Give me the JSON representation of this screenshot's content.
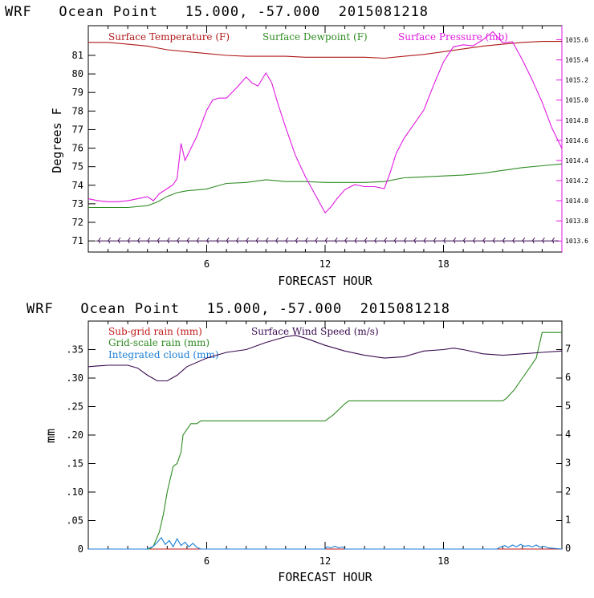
{
  "colors": {
    "temperature": "#b01818",
    "dewpoint": "#2e8b22",
    "pressure": "#e018e0",
    "subgrid": "#c01818",
    "gridscale": "#2e8b22",
    "cloud": "#1a7fd6",
    "wind": "#3a0a50",
    "barbs": "#3a0a50"
  },
  "chart_data": [
    {
      "type": "line",
      "title": "WRF   Ocean Point   15.000, -57.000  2015081218",
      "xlabel": "FORECAST HOUR",
      "ylabel": "Degrees F",
      "xlim": [
        0,
        24
      ],
      "ylim": [
        70.4,
        82.6
      ],
      "xticks": [
        6,
        12,
        18
      ],
      "yticks": [
        71,
        72,
        73,
        74,
        75,
        76,
        77,
        78,
        79,
        80,
        81
      ],
      "y2lim": [
        1013.49,
        1015.74
      ],
      "y2ticks": [
        "1013.6",
        "1013.8",
        "1014.0",
        "1014.2",
        "1014.4",
        "1014.6",
        "1014.8",
        "1015.0",
        "1015.2",
        "1015.4",
        "1015.6"
      ],
      "legend": [
        "Surface Temperature (F)",
        "Surface Dewpoint (F)",
        "Surface Pressure (mb)"
      ],
      "series": [
        {
          "name": "Surface Temperature (F)",
          "axis": "left",
          "x": [
            0,
            1,
            2,
            3,
            4,
            5,
            6,
            7,
            8,
            9,
            10,
            11,
            12,
            13,
            14,
            15,
            16,
            17,
            18,
            19,
            20,
            21,
            22,
            23,
            24
          ],
          "values": [
            81.7,
            81.7,
            81.6,
            81.5,
            81.3,
            81.2,
            81.1,
            81.0,
            80.95,
            80.95,
            80.95,
            80.9,
            80.9,
            80.9,
            80.9,
            80.85,
            80.95,
            81.05,
            81.2,
            81.35,
            81.5,
            81.6,
            81.7,
            81.75,
            81.75
          ]
        },
        {
          "name": "Surface Dewpoint (F)",
          "axis": "left",
          "x": [
            0,
            1,
            2,
            3,
            3.5,
            4,
            4.5,
            5,
            5.5,
            6,
            6.5,
            7,
            8,
            9,
            10,
            11,
            12,
            13,
            14,
            15,
            16,
            17,
            18,
            19,
            20,
            21,
            22,
            23,
            24
          ],
          "values": [
            72.8,
            72.8,
            72.8,
            72.9,
            73.1,
            73.4,
            73.6,
            73.7,
            73.75,
            73.8,
            73.95,
            74.1,
            74.15,
            74.3,
            74.2,
            74.2,
            74.15,
            74.15,
            74.15,
            74.2,
            74.4,
            74.45,
            74.5,
            74.55,
            74.65,
            74.8,
            74.95,
            75.05,
            75.15
          ]
        },
        {
          "name": "Surface Pressure (mb)",
          "axis": "right",
          "x": [
            0,
            0.5,
            1,
            1.5,
            2,
            2.5,
            3,
            3.3,
            3.6,
            4,
            4.3,
            4.5,
            4.7,
            4.9,
            5.2,
            5.5,
            6,
            6.3,
            6.6,
            7,
            7.5,
            8,
            8.3,
            8.6,
            9,
            9.3,
            9.6,
            10,
            10.5,
            11,
            11.5,
            12,
            12.3,
            12.6,
            13,
            13.5,
            14,
            14.5,
            15,
            15.3,
            15.6,
            16,
            16.5,
            17,
            17.5,
            18,
            18.5,
            19,
            19.5,
            20,
            20.5,
            21,
            21.5,
            22,
            22.5,
            23,
            23.5,
            24
          ],
          "values": [
            1014.02,
            1014.0,
            1013.99,
            1013.99,
            1014.0,
            1014.02,
            1014.04,
            1014.0,
            1014.07,
            1014.12,
            1014.16,
            1014.22,
            1014.57,
            1014.4,
            1014.52,
            1014.64,
            1014.9,
            1015.0,
            1015.02,
            1015.02,
            1015.12,
            1015.23,
            1015.17,
            1015.14,
            1015.27,
            1015.17,
            1014.97,
            1014.73,
            1014.45,
            1014.24,
            1014.06,
            1013.88,
            1013.94,
            1014.02,
            1014.11,
            1014.16,
            1014.14,
            1014.14,
            1014.12,
            1014.28,
            1014.47,
            1014.62,
            1014.76,
            1014.9,
            1015.15,
            1015.38,
            1015.53,
            1015.55,
            1015.54,
            1015.6,
            1015.68,
            1015.57,
            1015.58,
            1015.4,
            1015.2,
            1014.98,
            1014.72,
            1014.52
          ]
        }
      ],
      "annotations": [
        "Surface wind barbs along 71 F line"
      ]
    },
    {
      "type": "line",
      "title": "WRF   Ocean Point   15.000, -57.000  2015081218",
      "xlabel": "FORECAST HOUR",
      "ylabel": "mm",
      "xlim": [
        0,
        24
      ],
      "ylim": [
        0,
        0.4
      ],
      "xticks": [
        6,
        12,
        18
      ],
      "yticks": [
        0,
        0.05,
        0.1,
        0.15,
        0.2,
        0.25,
        0.3,
        0.35
      ],
      "yticklabels": [
        "0",
        ".05",
        ".10",
        ".15",
        ".20",
        ".25",
        ".30",
        ".35"
      ],
      "y2lim": [
        0,
        8
      ],
      "y2ticks": [
        "0",
        "1",
        "2",
        "3",
        "4",
        "5",
        "6",
        "7"
      ],
      "legend": [
        "Sub-grid rain (mm)",
        "Grid-scale rain (mm)",
        "Integrated cloud (mm)",
        "Surface Wind Speed (m/s)"
      ],
      "series": [
        {
          "name": "Sub-grid rain (mm)",
          "axis": "left",
          "x": [
            0,
            24
          ],
          "values": [
            0,
            0
          ]
        },
        {
          "name": "Grid-scale rain (mm)",
          "axis": "left",
          "x": [
            0,
            3.1,
            3.3,
            3.6,
            3.8,
            4.0,
            4.3,
            4.5,
            4.7,
            4.8,
            5.0,
            5.2,
            5.5,
            5.7,
            6,
            7,
            8,
            9,
            10,
            11,
            12,
            12.4,
            12.7,
            13,
            13.2,
            14,
            15,
            16,
            17,
            18,
            19,
            20,
            21,
            21.2,
            21.6,
            22,
            22.4,
            22.7,
            23,
            23.1,
            24
          ],
          "values": [
            0,
            0,
            0.005,
            0.03,
            0.06,
            0.1,
            0.145,
            0.15,
            0.17,
            0.2,
            0.21,
            0.22,
            0.22,
            0.225,
            0.225,
            0.225,
            0.225,
            0.225,
            0.225,
            0.225,
            0.225,
            0.235,
            0.245,
            0.255,
            0.26,
            0.26,
            0.26,
            0.26,
            0.26,
            0.26,
            0.26,
            0.26,
            0.26,
            0.265,
            0.28,
            0.3,
            0.32,
            0.335,
            0.38,
            0.38,
            0.38
          ]
        },
        {
          "name": "Integrated cloud (mm)",
          "axis": "left",
          "x": [
            0,
            3.0,
            3.3,
            3.5,
            3.7,
            3.9,
            4.1,
            4.3,
            4.5,
            4.7,
            4.9,
            5.1,
            5.3,
            5.5,
            5.7,
            6,
            12,
            12.1,
            12.3,
            12.5,
            12.7,
            12.9,
            13,
            20.7,
            20.9,
            21.1,
            21.3,
            21.5,
            21.7,
            21.9,
            22.1,
            22.3,
            22.5,
            22.7,
            22.9,
            23.1,
            23.3,
            24
          ],
          "values": [
            0,
            0,
            0.005,
            0.012,
            0.02,
            0.008,
            0.015,
            0.004,
            0.018,
            0.006,
            0.012,
            0.004,
            0.01,
            0.003,
            0.0,
            0,
            0,
            0.004,
            0.002,
            0.005,
            0.002,
            0.004,
            0,
            0,
            0.004,
            0.006,
            0.003,
            0.007,
            0.004,
            0.008,
            0.005,
            0.006,
            0.004,
            0.007,
            0.003,
            0.005,
            0.002,
            0
          ]
        },
        {
          "name": "Surface Wind Speed (m/s)",
          "axis": "right",
          "x": [
            0,
            1,
            2,
            2.5,
            3,
            3.5,
            4,
            4.5,
            5,
            6,
            7,
            8,
            9,
            10,
            10.5,
            11,
            12,
            13,
            14,
            15,
            16,
            17,
            18,
            18.5,
            19,
            20,
            21,
            22,
            23,
            24
          ],
          "values": [
            6.4,
            6.45,
            6.45,
            6.35,
            6.1,
            5.9,
            5.9,
            6.1,
            6.4,
            6.7,
            6.9,
            7.0,
            7.25,
            7.45,
            7.5,
            7.4,
            7.15,
            6.95,
            6.8,
            6.7,
            6.75,
            6.95,
            7.0,
            7.05,
            7.0,
            6.85,
            6.8,
            6.85,
            6.9,
            6.95
          ]
        }
      ]
    }
  ]
}
